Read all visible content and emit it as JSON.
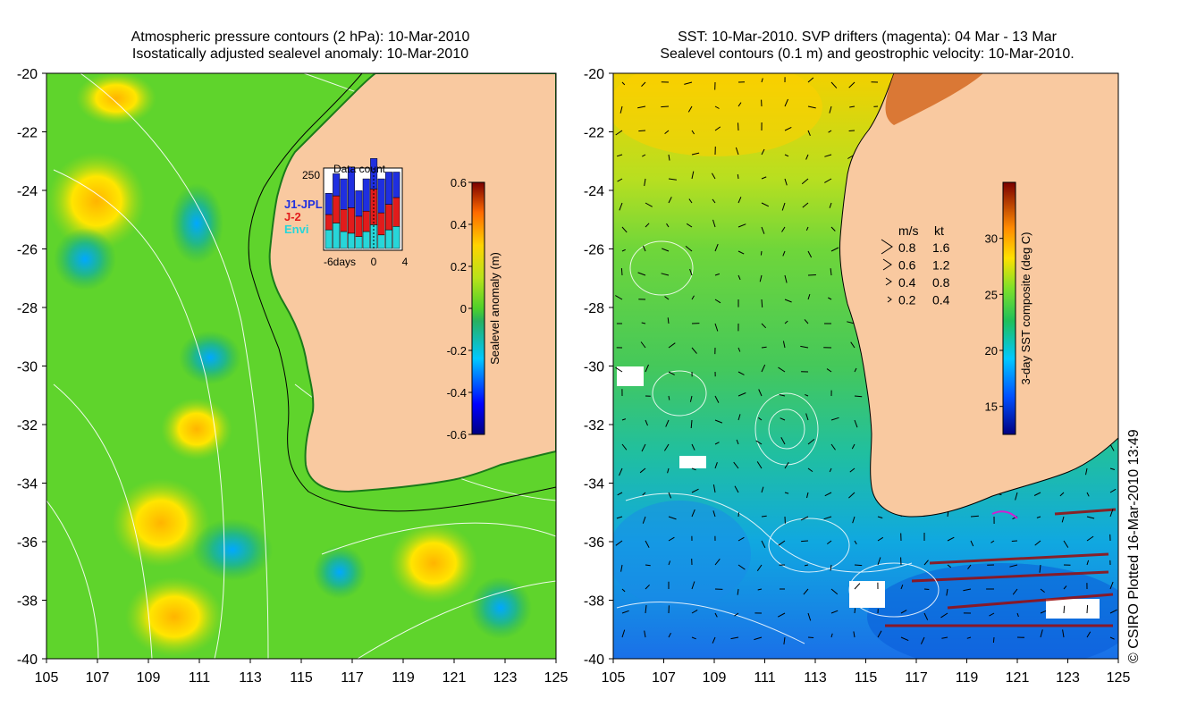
{
  "left_panel": {
    "title_line1": "Atmospheric pressure contours (2 hPa): 10-Mar-2010",
    "title_line2": "Isostatically adjusted sealevel anomaly: 10-Mar-2010",
    "lon_ticks": [
      "105",
      "107",
      "109",
      "111",
      "113",
      "115",
      "117",
      "119",
      "121",
      "123",
      "125"
    ],
    "lat_ticks": [
      "-20",
      "-22",
      "-24",
      "-26",
      "-28",
      "-30",
      "-32",
      "-34",
      "-36",
      "-38",
      "-40"
    ],
    "colorbar": {
      "label": "Sealevel anomaly (m)",
      "ticks": [
        "0.6",
        "0.4",
        "0.2",
        "0",
        "-0.2",
        "-0.4",
        "-0.6"
      ],
      "range": [
        -0.6,
        0.6
      ]
    },
    "inset": {
      "title": "Data count",
      "ytick": "250",
      "xticks": [
        "-6days",
        "0",
        "4"
      ],
      "legend": [
        {
          "label": "J1-JPL",
          "color": "#1f2fe0"
        },
        {
          "label": "J-2",
          "color": "#e21b1b"
        },
        {
          "label": "Envi",
          "color": "#27d6d9"
        }
      ]
    }
  },
  "right_panel": {
    "title_line1": "SST: 10-Mar-2010. SVP drifters (magenta): 04 Mar - 13 Mar",
    "title_line2": "Sealevel contours (0.1 m) and geostrophic velocity: 10-Mar-2010.",
    "lon_ticks": [
      "105",
      "107",
      "109",
      "111",
      "113",
      "115",
      "117",
      "119",
      "121",
      "123",
      "125"
    ],
    "lat_ticks": [
      "-20",
      "-22",
      "-24",
      "-26",
      "-28",
      "-30",
      "-32",
      "-34",
      "-36",
      "-38",
      "-40"
    ],
    "colorbar": {
      "label": "3-day SST composite (deg C)",
      "ticks": [
        "30",
        "25",
        "20",
        "15"
      ],
      "range": [
        12.5,
        35
      ]
    },
    "speed_legend": {
      "header_ms": "m/s",
      "header_kt": "kt",
      "rows": [
        {
          "ms": "0.8",
          "kt": "1.6"
        },
        {
          "ms": "0.6",
          "kt": "1.2"
        },
        {
          "ms": "0.4",
          "kt": "0.8"
        },
        {
          "ms": "0.2",
          "kt": "0.4"
        }
      ]
    }
  },
  "credit": "© CSIRO Plotted 16-Mar-2010 13:49",
  "colors": {
    "land": "#f9c9a0",
    "coast": "#000000"
  }
}
